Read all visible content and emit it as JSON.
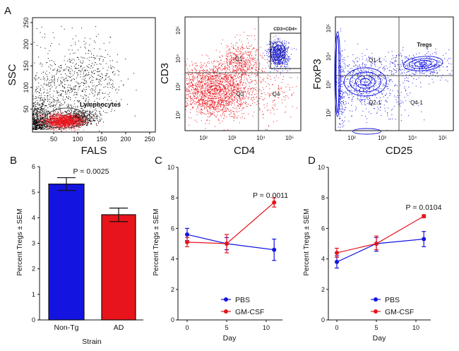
{
  "panel_labels": [
    "A",
    "B",
    "C",
    "D"
  ],
  "colors": {
    "red": "#e8141c",
    "blue": "#1414e0",
    "black": "#000000",
    "gate": "#444444"
  },
  "chart_data": [
    {
      "panel": "A",
      "type": "scatter",
      "xlabel": "FALS",
      "ylabel": "SSC",
      "xlim": [
        0,
        260
      ],
      "ylim": [
        0,
        260
      ],
      "xticks": [
        "50",
        "100",
        "150",
        "200",
        "250"
      ],
      "yticks": [
        "50",
        "100",
        "150",
        "200",
        "250"
      ],
      "gate_label": "Lymphocytes"
    },
    {
      "panel": "A",
      "type": "scatter",
      "xlabel": "CD4",
      "ylabel": "CD3",
      "scale": "log",
      "xticks": [
        "10²",
        "10³",
        "10⁴",
        "10⁵"
      ],
      "yticks": [
        "10²",
        "10³",
        "10⁴",
        "10⁵"
      ],
      "gate_label": "CD3+CD4+",
      "quadrant_labels": [
        "Q1",
        "Q3",
        "Q4"
      ]
    },
    {
      "panel": "A",
      "type": "scatter",
      "xlabel": "CD25",
      "ylabel": "FoxP3",
      "scale": "log",
      "xticks": [
        "10²",
        "10³",
        "10⁴",
        "10⁵"
      ],
      "yticks": [
        "10²",
        "10³",
        "10⁴",
        "10⁵"
      ],
      "gate_label": "Tregs",
      "quadrant_labels": [
        "Q1-1",
        "Q2-1",
        "Q4-1"
      ]
    },
    {
      "panel": "B",
      "type": "bar",
      "categories": [
        "Non-Tg",
        "AD"
      ],
      "values": [
        5.32,
        4.12
      ],
      "errors": [
        [
          5.07,
          5.57
        ],
        [
          3.85,
          4.38
        ]
      ],
      "bar_colors": [
        "#1414e0",
        "#e8141c"
      ],
      "xlabel": "Strain",
      "ylabel": "Percent Tregs ± SEM",
      "ylim": [
        0,
        6
      ],
      "yticks": [
        "0",
        "1",
        "2",
        "3",
        "4",
        "5",
        "6"
      ],
      "annotation": "P = 0.0025"
    },
    {
      "panel": "C",
      "type": "line",
      "x": [
        0,
        5,
        11
      ],
      "xticks": [
        "0",
        "5",
        "10"
      ],
      "yticks": [
        "0",
        "2",
        "4",
        "6",
        "8",
        "10"
      ],
      "xlim": [
        0,
        12
      ],
      "ylim": [
        0,
        10
      ],
      "xlabel": "Day",
      "ylabel": "Percent Tregs ± SEM",
      "annotation": "P = 0.0011",
      "legend": "bottom-right",
      "series": [
        {
          "name": "PBS",
          "color": "#1414e0",
          "values": [
            5.6,
            5.0,
            4.6
          ],
          "errors": [
            [
              5.2,
              6.0
            ],
            [
              4.6,
              5.4
            ],
            [
              3.9,
              5.3
            ]
          ]
        },
        {
          "name": "GM-CSF",
          "color": "#e8141c",
          "values": [
            5.1,
            5.0,
            7.7
          ],
          "errors": [
            [
              4.8,
              5.4
            ],
            [
              4.4,
              5.6
            ],
            [
              7.4,
              8.0
            ]
          ]
        }
      ]
    },
    {
      "panel": "D",
      "type": "line",
      "x": [
        0,
        5,
        11
      ],
      "xticks": [
        "0",
        "5",
        "10"
      ],
      "yticks": [
        "0",
        "2",
        "4",
        "6",
        "8",
        "10"
      ],
      "xlim": [
        0,
        12
      ],
      "ylim": [
        0,
        10
      ],
      "xlabel": "Day",
      "ylabel": "Percent Tregs ± SEM",
      "annotation": "P = 0.0104",
      "legend": "bottom-right",
      "series": [
        {
          "name": "PBS",
          "color": "#1414e0",
          "values": [
            3.8,
            5.0,
            5.3
          ],
          "errors": [
            [
              3.4,
              4.2
            ],
            [
              4.5,
              5.4
            ],
            [
              4.8,
              5.8
            ]
          ]
        },
        {
          "name": "GM-CSF",
          "color": "#e8141c",
          "values": [
            4.4,
            5.0,
            6.8
          ],
          "errors": [
            [
              4.1,
              4.7
            ],
            [
              4.6,
              5.5
            ],
            [
              6.7,
              6.9
            ]
          ]
        }
      ]
    }
  ]
}
